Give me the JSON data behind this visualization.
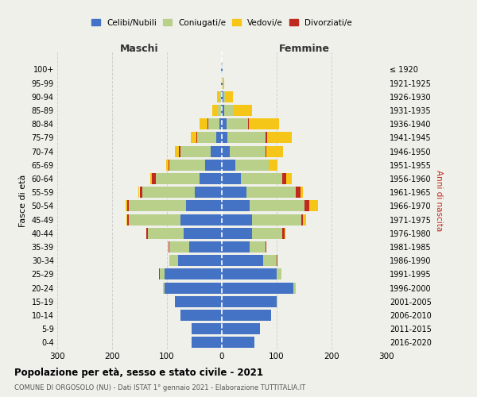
{
  "age_groups": [
    "0-4",
    "5-9",
    "10-14",
    "15-19",
    "20-24",
    "25-29",
    "30-34",
    "35-39",
    "40-44",
    "45-49",
    "50-54",
    "55-59",
    "60-64",
    "65-69",
    "70-74",
    "75-79",
    "80-84",
    "85-89",
    "90-94",
    "95-99",
    "100+"
  ],
  "birth_years": [
    "2016-2020",
    "2011-2015",
    "2006-2010",
    "2001-2005",
    "1996-2000",
    "1991-1995",
    "1986-1990",
    "1981-1985",
    "1976-1980",
    "1971-1975",
    "1966-1970",
    "1961-1965",
    "1956-1960",
    "1951-1955",
    "1946-1950",
    "1941-1945",
    "1936-1940",
    "1931-1935",
    "1926-1930",
    "1921-1925",
    "≤ 1920"
  ],
  "colors": {
    "celibi": "#4472c4",
    "coniugati": "#b8d08a",
    "vedovi": "#f5c518",
    "divorziati": "#c0291f"
  },
  "males": {
    "celibi": [
      55,
      55,
      75,
      85,
      105,
      105,
      80,
      60,
      70,
      75,
      65,
      50,
      40,
      30,
      20,
      10,
      5,
      2,
      2,
      1,
      1
    ],
    "coniugati": [
      0,
      0,
      0,
      1,
      2,
      8,
      15,
      35,
      65,
      95,
      105,
      95,
      80,
      65,
      55,
      35,
      20,
      6,
      2,
      0,
      0
    ],
    "vedovi": [
      0,
      0,
      0,
      0,
      0,
      0,
      0,
      0,
      1,
      1,
      3,
      2,
      3,
      5,
      8,
      10,
      15,
      10,
      5,
      1,
      0
    ],
    "divorziati": [
      0,
      0,
      0,
      0,
      0,
      1,
      1,
      2,
      2,
      3,
      2,
      5,
      8,
      2,
      3,
      2,
      1,
      0,
      0,
      0,
      0
    ]
  },
  "females": {
    "celibi": [
      60,
      70,
      90,
      100,
      130,
      100,
      75,
      50,
      55,
      55,
      50,
      45,
      35,
      25,
      15,
      10,
      8,
      5,
      3,
      2,
      1
    ],
    "coniugati": [
      0,
      0,
      0,
      1,
      5,
      8,
      25,
      30,
      55,
      90,
      100,
      90,
      75,
      60,
      65,
      70,
      40,
      15,
      3,
      0,
      0
    ],
    "vedovi": [
      0,
      0,
      0,
      0,
      0,
      0,
      0,
      0,
      1,
      5,
      15,
      5,
      10,
      15,
      30,
      45,
      55,
      35,
      15,
      3,
      1
    ],
    "divorziati": [
      0,
      0,
      0,
      0,
      0,
      1,
      1,
      1,
      5,
      3,
      10,
      8,
      8,
      1,
      1,
      2,
      1,
      0,
      0,
      0,
      0
    ]
  },
  "xlim": 300,
  "title": "Popolazione per età, sesso e stato civile - 2021",
  "subtitle": "COMUNE DI ORGOSOLO (NU) - Dati ISTAT 1° gennaio 2021 - Elaborazione TUTTITALIA.IT",
  "xlabel_left": "Maschi",
  "xlabel_right": "Femmine",
  "ylabel": "Fasce di età",
  "ylabel_right": "Anni di nascita",
  "background_color": "#f0f0eb",
  "grid_color": "#cccccc"
}
